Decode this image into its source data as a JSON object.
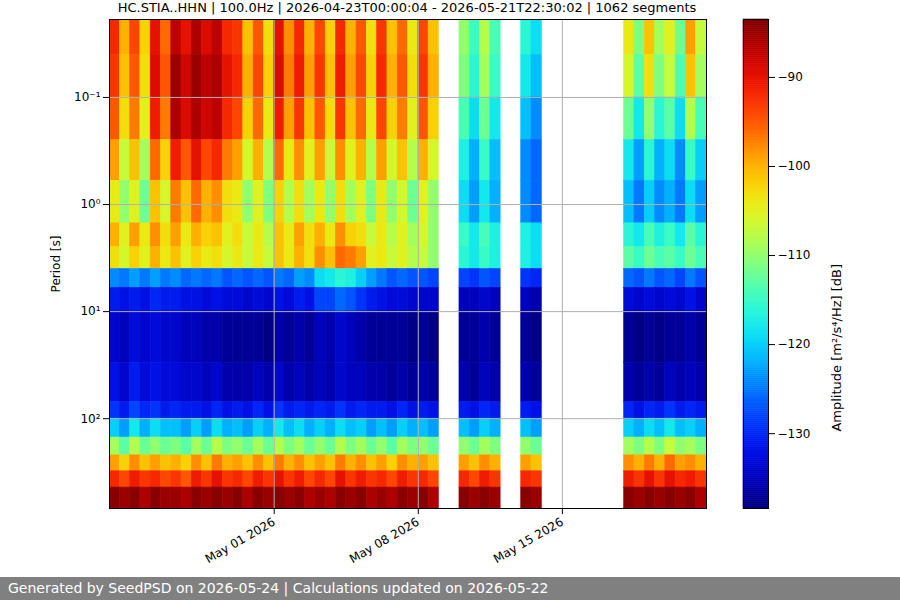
{
  "chart_data": {
    "type": "heatmap",
    "title": "HC.STIA..HHN | 100.0Hz | 2026-04-23T00:00:04 - 2026-05-21T22:30:02 | 1062 segments",
    "footer": "Generated by SeedPSD on 2026-05-24 | Calculations updated on 2026-05-22",
    "y_label": "Period [s]",
    "log": "y",
    "grid": true,
    "xlim": [
      "2026-04-23T00:00Z",
      "2026-05-22T00:00Z"
    ],
    "xticks": [
      {
        "value": "2026-05-01T00:00Z",
        "label": "May 01 2026"
      },
      {
        "value": "2026-05-08T00:00Z",
        "label": "May 08 2026"
      },
      {
        "value": "2026-05-15T00:00Z",
        "label": "May 15 2026"
      }
    ],
    "ylim": [
      0.0187,
      690
    ],
    "yticks": [
      {
        "value": 0.1,
        "label": "10⁻¹"
      },
      {
        "value": 1,
        "label": "10⁰"
      },
      {
        "value": 10,
        "label": "10¹"
      },
      {
        "value": 100,
        "label": "10²"
      }
    ],
    "x_edges": [
      "2026-04-23T00:00Z",
      "2026-04-23T12:00Z",
      "2026-04-24T00:00Z",
      "2026-04-24T12:00Z",
      "2026-04-25T00:00Z",
      "2026-04-25T12:00Z",
      "2026-04-26T00:00Z",
      "2026-04-26T12:00Z",
      "2026-04-27T00:00Z",
      "2026-04-27T12:00Z",
      "2026-04-28T00:00Z",
      "2026-04-28T12:00Z",
      "2026-04-29T00:00Z",
      "2026-04-29T12:00Z",
      "2026-04-30T00:00Z",
      "2026-04-30T12:00Z",
      "2026-05-01T00:00Z",
      "2026-05-01T12:00Z",
      "2026-05-02T00:00Z",
      "2026-05-02T12:00Z",
      "2026-05-03T00:00Z",
      "2026-05-03T12:00Z",
      "2026-05-04T00:00Z",
      "2026-05-04T12:00Z",
      "2026-05-05T00:00Z",
      "2026-05-05T12:00Z",
      "2026-05-06T00:00Z",
      "2026-05-06T12:00Z",
      "2026-05-07T00:00Z",
      "2026-05-07T12:00Z",
      "2026-05-08T00:00Z",
      "2026-05-08T12:00Z",
      "2026-05-09T00:00Z",
      "2026-05-09T12:00Z",
      "2026-05-10T00:00Z",
      "2026-05-10T12:00Z",
      "2026-05-11T00:00Z",
      "2026-05-11T12:00Z",
      "2026-05-12T00:00Z",
      "2026-05-12T12:00Z",
      "2026-05-13T00:00Z",
      "2026-05-13T12:00Z",
      "2026-05-14T00:00Z",
      "2026-05-14T12:00Z",
      "2026-05-15T00:00Z",
      "2026-05-15T12:00Z",
      "2026-05-16T00:00Z",
      "2026-05-16T12:00Z",
      "2026-05-17T00:00Z",
      "2026-05-17T12:00Z",
      "2026-05-18T00:00Z",
      "2026-05-18T12:00Z",
      "2026-05-19T00:00Z",
      "2026-05-19T12:00Z",
      "2026-05-20T00:00Z",
      "2026-05-20T12:00Z",
      "2026-05-21T00:00Z",
      "2026-05-21T12:00Z",
      "2026-05-22T00:00Z"
    ],
    "y_edges": [
      0.0187,
      0.04,
      0.1,
      0.25,
      0.6,
      1.5,
      2.5,
      4,
      6,
      10,
      30,
      70,
      100,
      150,
      220,
      310,
      440,
      690
    ],
    "values": [
      [
        -92,
        -100,
        -94,
        -102,
        -90,
        -96,
        -87,
        -90,
        -86,
        -89,
        -87,
        -92,
        -93,
        -101,
        -95,
        -103,
        -90,
        -98,
        -92,
        -100,
        -94,
        -102,
        -92,
        -100,
        -95,
        -103,
        -93,
        -101,
        -96,
        -104,
        -94,
        -101,
        null,
        null,
        -110,
        -115,
        -108,
        -114,
        null,
        null,
        -116,
        -119,
        null,
        null,
        null,
        null,
        null,
        null,
        null,
        null,
        -104,
        -111,
        -101,
        -109,
        -105,
        -112,
        -99,
        -107
      ],
      [
        -93,
        -101,
        -95,
        -103,
        -89,
        -95,
        -85,
        -88,
        -85,
        -87,
        -86,
        -90,
        -92,
        -100,
        -94,
        -102,
        -89,
        -97,
        -91,
        -99,
        -93,
        -101,
        -91,
        -99,
        -94,
        -102,
        -92,
        -100,
        -95,
        -103,
        -93,
        -100,
        null,
        null,
        -111,
        -116,
        -109,
        -115,
        null,
        null,
        -118,
        -121,
        null,
        null,
        null,
        null,
        null,
        null,
        null,
        null,
        -106,
        -113,
        -103,
        -111,
        -107,
        -114,
        -101,
        -109
      ],
      [
        -95,
        -103,
        -97,
        -105,
        -91,
        -97,
        -86,
        -89,
        -86,
        -88,
        -87,
        -92,
        -94,
        -102,
        -96,
        -104,
        -91,
        -99,
        -93,
        -101,
        -95,
        -103,
        -93,
        -101,
        -96,
        -104,
        -94,
        -102,
        -97,
        -105,
        -95,
        -102,
        null,
        null,
        -114,
        -119,
        -112,
        -118,
        null,
        null,
        -121,
        -124,
        null,
        null,
        null,
        null,
        null,
        null,
        null,
        null,
        -112,
        -118,
        -110,
        -116,
        -113,
        -119,
        -108,
        -114
      ],
      [
        -99,
        -107,
        -101,
        -109,
        -96,
        -102,
        -91,
        -95,
        -90,
        -94,
        -92,
        -97,
        -99,
        -106,
        -100,
        -108,
        -96,
        -104,
        -98,
        -105,
        -99,
        -107,
        -98,
        -105,
        -100,
        -108,
        -99,
        -106,
        -101,
        -108,
        -100,
        -106,
        null,
        null,
        -117,
        -122,
        -115,
        -121,
        null,
        null,
        -124,
        -126,
        null,
        null,
        null,
        null,
        null,
        null,
        null,
        null,
        -118,
        -123,
        -116,
        -122,
        -119,
        -124,
        -115,
        -120
      ],
      [
        -104,
        -110,
        -105,
        -112,
        -101,
        -106,
        -97,
        -101,
        -96,
        -100,
        -98,
        -103,
        -104,
        -110,
        -105,
        -111,
        -102,
        -108,
        -103,
        -109,
        -104,
        -110,
        -103,
        -109,
        -105,
        -111,
        -104,
        -110,
        -106,
        -112,
        -105,
        -110,
        null,
        null,
        -119,
        -123,
        -118,
        -122,
        null,
        null,
        -124,
        -126,
        null,
        null,
        null,
        null,
        null,
        null,
        null,
        null,
        -121,
        -125,
        -120,
        -124,
        -122,
        -125,
        -119,
        -123
      ],
      [
        -100,
        -105,
        -99,
        -104,
        -98,
        -103,
        -99,
        -104,
        -100,
        -102,
        -101,
        -105,
        -103,
        -107,
        -104,
        -108,
        -101,
        -104,
        -99,
        -103,
        -100,
        -104,
        -98,
        -102,
        -103,
        -107,
        -104,
        -108,
        -105,
        -109,
        -106,
        -110,
        null,
        null,
        -115,
        -118,
        -114,
        -117,
        null,
        null,
        -117,
        -119,
        null,
        null,
        null,
        null,
        null,
        null,
        null,
        null,
        -116,
        -118,
        -114,
        -117,
        -115,
        -118,
        -113,
        -116
      ],
      [
        -103,
        -106,
        -102,
        -105,
        -100,
        -104,
        -101,
        -105,
        -102,
        -104,
        -103,
        -106,
        -104,
        -107,
        -104,
        -107,
        -101,
        -104,
        -100,
        -103,
        -98,
        -101,
        -96,
        -97,
        -99,
        -105,
        -104,
        -107,
        -105,
        -108,
        -107,
        -110,
        null,
        null,
        -116,
        -118,
        -115,
        -117,
        null,
        null,
        -117,
        -119,
        null,
        null,
        null,
        null,
        null,
        null,
        null,
        null,
        -113,
        -115,
        -112,
        -114,
        -113,
        -115,
        -112,
        -114
      ],
      [
        -124,
        -125,
        -123,
        -125,
        -123,
        -125,
        -124,
        -126,
        -125,
        -126,
        -125,
        -127,
        -126,
        -127,
        -126,
        -127,
        -125,
        -126,
        -123,
        -124,
        -119,
        -118,
        -116,
        -117,
        -120,
        -123,
        -125,
        -127,
        -126,
        -127,
        -127,
        -128,
        null,
        null,
        -128,
        -129,
        -127,
        -128,
        null,
        null,
        -129,
        -130,
        null,
        null,
        null,
        null,
        null,
        null,
        null,
        null,
        -126,
        -127,
        -125,
        -127,
        -126,
        -128,
        -125,
        -127
      ],
      [
        -131,
        -132,
        -131,
        -132,
        -130,
        -131,
        -131,
        -132,
        -132,
        -133,
        -132,
        -133,
        -133,
        -134,
        -133,
        -134,
        -132,
        -133,
        -131,
        -132,
        -128,
        -128,
        -126,
        -127,
        -129,
        -131,
        -132,
        -133,
        -133,
        -134,
        -134,
        -134,
        null,
        null,
        -135,
        -135,
        -134,
        -135,
        null,
        null,
        -135,
        -136,
        null,
        null,
        null,
        null,
        null,
        null,
        null,
        null,
        -133,
        -134,
        -133,
        -134,
        -133,
        -134,
        -132,
        -134
      ],
      [
        -134,
        -135,
        -133,
        -134,
        -133,
        -134,
        -134,
        -135,
        -135,
        -136,
        -136,
        -137,
        -137,
        -137,
        -137,
        -138,
        -136,
        -137,
        -136,
        -137,
        -135,
        -136,
        -134,
        -135,
        -136,
        -137,
        -137,
        -137,
        -137,
        -138,
        -137,
        -138,
        null,
        null,
        -137,
        -137,
        -136,
        -137,
        null,
        null,
        -137,
        -138,
        null,
        null,
        null,
        null,
        null,
        null,
        null,
        null,
        -137,
        -138,
        -137,
        -138,
        -137,
        -137,
        -136,
        -137
      ],
      [
        -132,
        -134,
        -131,
        -133,
        -132,
        -133,
        -133,
        -134,
        -134,
        -135,
        -134,
        -136,
        -136,
        -136,
        -135,
        -136,
        -134,
        -136,
        -135,
        -136,
        -135,
        -136,
        -134,
        -135,
        -135,
        -136,
        -136,
        -137,
        -136,
        -137,
        -136,
        -137,
        null,
        null,
        -136,
        -137,
        -135,
        -136,
        null,
        null,
        -136,
        -137,
        null,
        null,
        null,
        null,
        null,
        null,
        null,
        null,
        -136,
        -137,
        -136,
        -137,
        -135,
        -136,
        -135,
        -136
      ],
      [
        -129,
        -131,
        -128,
        -130,
        -129,
        -131,
        -130,
        -131,
        -131,
        -132,
        -130,
        -132,
        -131,
        -132,
        -130,
        -132,
        -129,
        -131,
        -130,
        -131,
        -130,
        -131,
        -129,
        -131,
        -130,
        -131,
        -131,
        -132,
        -130,
        -132,
        -131,
        -132,
        null,
        null,
        -131,
        -132,
        -130,
        -131,
        null,
        null,
        -131,
        -132,
        null,
        null,
        null,
        null,
        null,
        null,
        null,
        null,
        -130,
        -132,
        -130,
        -131,
        -129,
        -131,
        -130,
        -131
      ],
      [
        -120,
        -123,
        -118,
        -122,
        -119,
        -121,
        -121,
        -123,
        -120,
        -123,
        -119,
        -122,
        -121,
        -123,
        -120,
        -122,
        -118,
        -121,
        -119,
        -122,
        -120,
        -122,
        -119,
        -121,
        -120,
        -123,
        -121,
        -123,
        -120,
        -122,
        -121,
        -123,
        null,
        null,
        -121,
        -123,
        -120,
        -122,
        null,
        null,
        -121,
        -123,
        null,
        null,
        null,
        null,
        null,
        null,
        null,
        null,
        -120,
        -122,
        -119,
        -121,
        -118,
        -121,
        -120,
        -122
      ],
      [
        -109,
        -113,
        -108,
        -112,
        -110,
        -112,
        -111,
        -113,
        -109,
        -112,
        -108,
        -111,
        -110,
        -112,
        -109,
        -112,
        -108,
        -111,
        -109,
        -112,
        -110,
        -112,
        -108,
        -111,
        -109,
        -112,
        -110,
        -113,
        -109,
        -111,
        -110,
        -112,
        null,
        null,
        -110,
        -112,
        -109,
        -111,
        null,
        null,
        -110,
        -112,
        null,
        null,
        null,
        null,
        null,
        null,
        null,
        null,
        -109,
        -111,
        -108,
        -111,
        -107,
        -110,
        -109,
        -111
      ],
      [
        -99,
        -102,
        -98,
        -101,
        -99,
        -101,
        -100,
        -102,
        -98,
        -101,
        -97,
        -100,
        -99,
        -101,
        -98,
        -101,
        -97,
        -100,
        -98,
        -101,
        -99,
        -101,
        -97,
        -100,
        -98,
        -101,
        -99,
        -102,
        -98,
        -100,
        -99,
        -101,
        null,
        null,
        -99,
        -101,
        -98,
        -100,
        null,
        null,
        -99,
        -101,
        null,
        null,
        null,
        null,
        null,
        null,
        null,
        null,
        -98,
        -100,
        -97,
        -100,
        -96,
        -99,
        -98,
        -100
      ],
      [
        -92,
        -94,
        -91,
        -93,
        -92,
        -94,
        -93,
        -95,
        -91,
        -93,
        -90,
        -93,
        -92,
        -94,
        -91,
        -93,
        -90,
        -93,
        -91,
        -94,
        -92,
        -94,
        -90,
        -93,
        -91,
        -93,
        -92,
        -94,
        -91,
        -93,
        -92,
        -94,
        null,
        null,
        -92,
        -94,
        -91,
        -93,
        null,
        null,
        -92,
        -93,
        null,
        null,
        null,
        null,
        null,
        null,
        null,
        null,
        -91,
        -93,
        -90,
        -93,
        -90,
        -92,
        -91,
        -93
      ],
      [
        -84,
        -85,
        -84,
        -86,
        -84,
        -85,
        -85,
        -86,
        -84,
        -85,
        -84,
        -85,
        -84,
        -86,
        -84,
        -85,
        -84,
        -85,
        -84,
        -86,
        -85,
        -86,
        -84,
        -85,
        -84,
        -86,
        -85,
        -86,
        -84,
        -85,
        -84,
        -86,
        null,
        null,
        -84,
        -85,
        -84,
        -85,
        null,
        null,
        -84,
        -85,
        null,
        null,
        null,
        null,
        null,
        null,
        null,
        null,
        -84,
        -85,
        -84,
        -85,
        -84,
        -85,
        -84,
        -86
      ]
    ],
    "colorbar": {
      "label": "Amplitude [m²/s⁴/Hz] [dB]",
      "range": [
        -138.4,
        -83.5
      ],
      "ticks": [
        -90,
        -100,
        -110,
        -120,
        -130
      ]
    }
  }
}
